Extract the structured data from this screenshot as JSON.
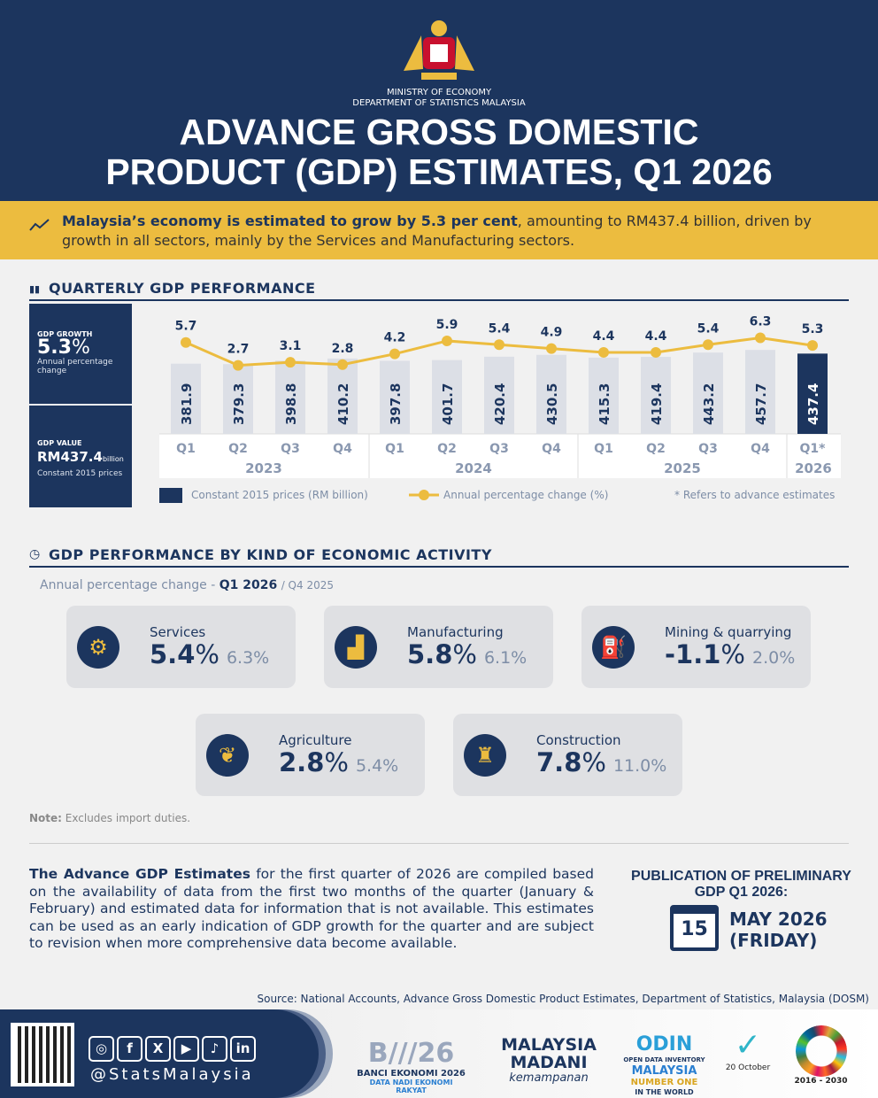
{
  "header": {
    "ministry": "MINISTRY OF ECONOMY",
    "department": "DEPARTMENT OF STATISTICS MALAYSIA",
    "title_line1": "ADVANCE GROSS DOMESTIC",
    "title_line2": "PRODUCT (GDP) ESTIMATES, Q1 2026"
  },
  "banner": {
    "bold": "Malaysia’s economy is estimated to grow by 5.3 per cent",
    "rest": ", amounting to RM437.4 billion, driven by growth in all sectors, mainly by the Services and Manufacturing sectors."
  },
  "quarterly": {
    "title": "QUARTERLY GDP PERFORMANCE",
    "growth": {
      "label": "GDP GROWTH",
      "value": "5.3",
      "unit": "%",
      "desc": "Annual percentage change"
    },
    "gdp_value": {
      "label": "GDP VALUE",
      "value": "RM437.4",
      "unit": "billion",
      "desc": "Constant 2015 prices"
    }
  },
  "chart_data": {
    "type": "bar+line",
    "categories": [
      "Q1",
      "Q2",
      "Q3",
      "Q4",
      "Q1",
      "Q2",
      "Q3",
      "Q4",
      "Q1",
      "Q2",
      "Q3",
      "Q4",
      "Q1*"
    ],
    "years": [
      "2023",
      "2024",
      "2025",
      "2026"
    ],
    "series": [
      {
        "name": "Constant 2015 prices (RM billion)",
        "type": "bar",
        "values": [
          381.9,
          379.3,
          398.8,
          410.2,
          397.8,
          401.7,
          420.4,
          430.5,
          415.3,
          419.4,
          443.2,
          457.7,
          437.4
        ],
        "color": "#dcdfe6",
        "highlight_color": "#1c355e"
      },
      {
        "name": "Annual percentage change (%)",
        "type": "line",
        "values": [
          5.7,
          2.7,
          3.1,
          2.8,
          4.2,
          5.9,
          5.4,
          4.9,
          4.4,
          4.4,
          5.4,
          6.3,
          5.3
        ],
        "color": "#ecbc3f"
      }
    ],
    "note": "* Refers to advance estimates",
    "legend": "bottom"
  },
  "activity": {
    "title": "GDP PERFORMANCE BY KIND OF ECONOMIC ACTIVITY",
    "subtitle_prefix": "Annual percentage change -",
    "subtitle_current": "Q1 2026",
    "subtitle_prev": "/ Q4 2025",
    "sectors": [
      {
        "name": "Services",
        "current": "5.4",
        "prev": "6.3%",
        "icon": "services-icon"
      },
      {
        "name": "Manufacturing",
        "current": "5.8",
        "prev": "6.1%",
        "icon": "factory-icon"
      },
      {
        "name": "Mining & quarrying",
        "current": "-1.1",
        "prev": "2.0%",
        "icon": "oil-rig-icon"
      },
      {
        "name": "Agriculture",
        "current": "2.8",
        "prev": "5.4%",
        "icon": "palm-icon"
      },
      {
        "name": "Construction",
        "current": "7.8",
        "prev": "11.0%",
        "icon": "crane-icon"
      }
    ],
    "pct": "%",
    "note_label": "Note:",
    "note": "Excludes import duties."
  },
  "info": {
    "bold": "The Advance GDP Estimates",
    "text": " for the first quarter of 2026 are compiled based on the availability of data from the first two months of the quarter (January & February) and estimated data for information that is not available. This estimates can be used as an early indication of GDP growth for the quarter and are subject to revision when more comprehensive data become available."
  },
  "publication": {
    "title": "PUBLICATION OF PRELIMINARY GDP Q1 2026:",
    "day": "15",
    "month": "MAY 2026",
    "weekday": "(FRIDAY)"
  },
  "source": "Source: National Accounts, Advance Gross Domestic Product Estimates, Department of Statistics, Malaysia (DOSM)",
  "footer": {
    "handle": "@StatsMalaysia",
    "social": [
      "instagram",
      "f",
      "X",
      "▶",
      "♪",
      "in"
    ],
    "logos": {
      "banci": "BANCI EKONOMI 2026",
      "banci_sub": "DATA NADI EKONOMI RAKYAT",
      "madani1": "MALAYSIA",
      "madani2": "MADANI",
      "madani3": "kemampanan",
      "odin1": "ODIN",
      "odin2": "OPEN DATA INVENTORY",
      "odin3": "MALAYSIA",
      "odin4": "NUMBER ONE",
      "odin5": "IN THE WORLD",
      "stats_day": "20 October",
      "sdg": "2016 - 2030"
    }
  }
}
